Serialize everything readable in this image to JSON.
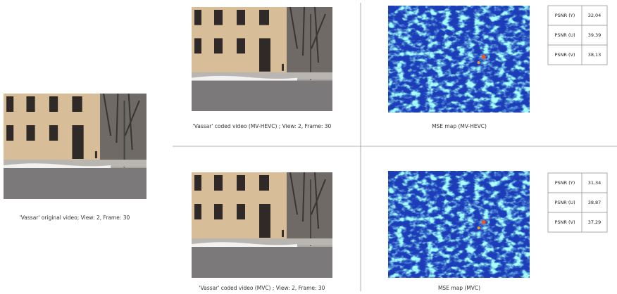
{
  "captions": {
    "original": "'Vassar' original video; View: 2, Frame: 30",
    "hevc_coded": "'Vassar' coded video (MV-HEVC) ; View: 2, Frame: 30",
    "hevc_mse": "MSE map (MV-HEVC)",
    "mvc_coded": "'Vassar' coded video (MVC) ; View: 2, Frame: 30",
    "mvc_mse": "MSE map (MVC)"
  },
  "tables": {
    "hevc": {
      "rows": [
        [
          "PSNR (Y)",
          "32,04"
        ],
        [
          "PSNR (U)",
          "39,39"
        ],
        [
          "PSNR (V)",
          "38,13"
        ]
      ]
    },
    "mvc": {
      "rows": [
        [
          "PSNR (Y)",
          "31,34"
        ],
        [
          "PSNR (U)",
          "38,87"
        ],
        [
          "PSNR (V)",
          "37,29"
        ]
      ]
    }
  }
}
